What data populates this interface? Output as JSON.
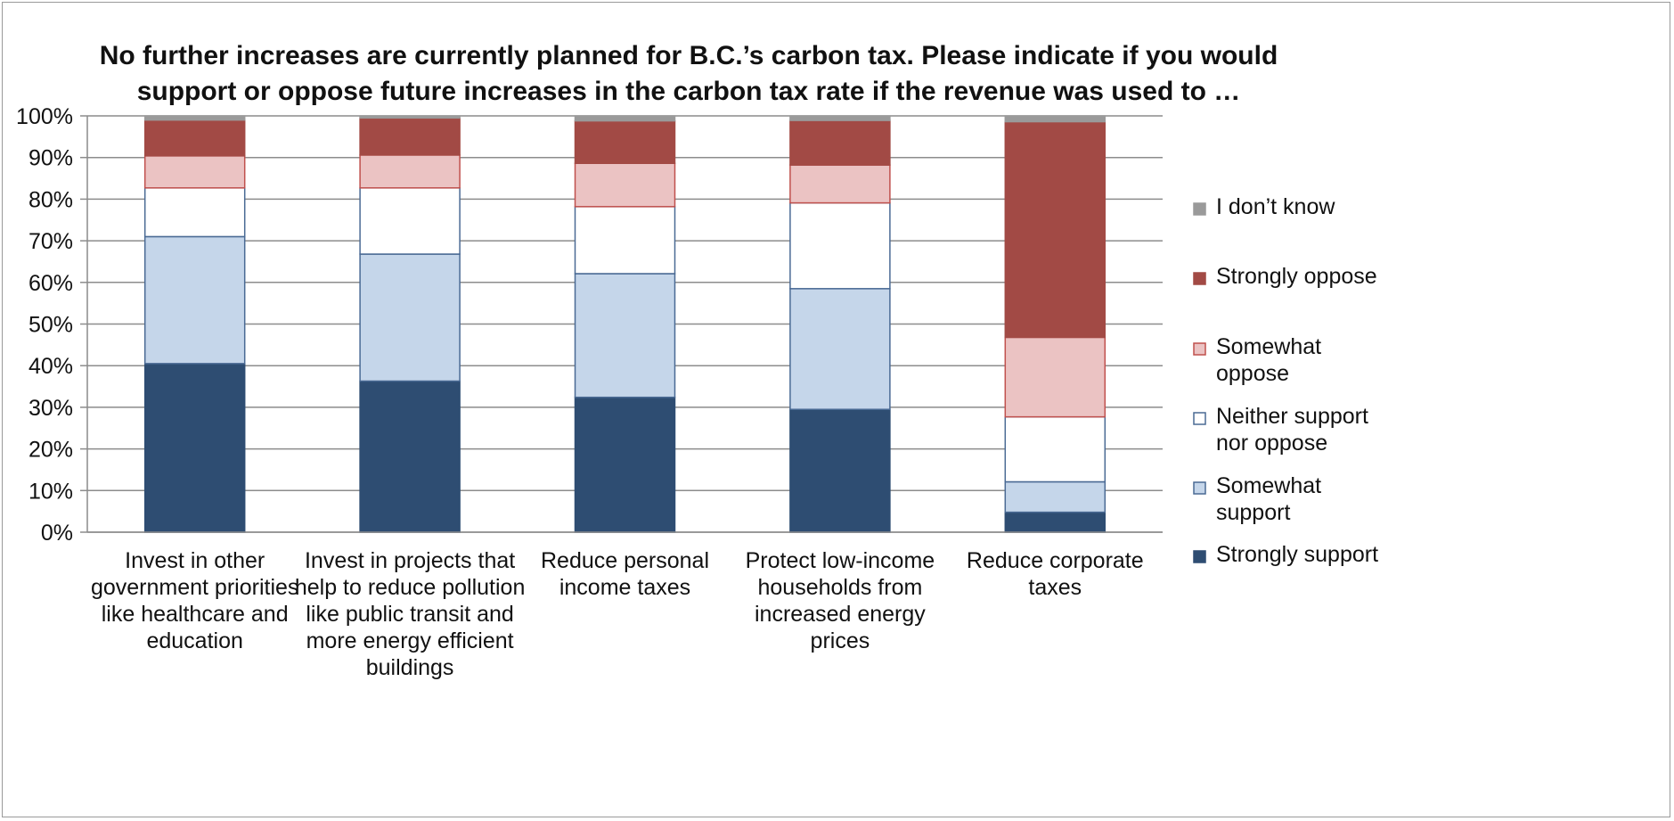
{
  "chart_data": {
    "type": "bar",
    "stacked": true,
    "title": "No further increases are currently planned for B.C.’s carbon tax. Please indicate if you would support or oppose future increases in the carbon tax rate if the revenue was used to …",
    "title_lines": [
      "No further increases are currently planned for B.C.’s carbon tax. Please indicate if you would",
      "support or oppose future increases in the carbon tax rate if the revenue was used to …"
    ],
    "xlabel": "",
    "ylabel": "",
    "ylim": [
      0,
      100
    ],
    "y_ticks": [
      "0%",
      "10%",
      "20%",
      "30%",
      "40%",
      "50%",
      "60%",
      "70%",
      "80%",
      "90%",
      "100%"
    ],
    "grid": true,
    "legend_position": "right",
    "categories": [
      [
        "Invest in other",
        "government priorities",
        "like healthcare and",
        "education"
      ],
      [
        "Invest in projects that",
        "help to reduce pollution",
        "like public transit and",
        "more energy efficient",
        "buildings"
      ],
      [
        "Reduce personal",
        "income taxes"
      ],
      [
        "Protect low-income",
        "households from",
        "increased energy",
        "prices"
      ],
      [
        "Reduce corporate",
        "taxes"
      ]
    ],
    "series": [
      {
        "name": "Strongly support",
        "legend_lines": [
          "Strongly support"
        ],
        "color": "#2e4d72",
        "stroke": "#2e4d72",
        "values": [
          40.5,
          36.3,
          32.4,
          29.5,
          4.8
        ]
      },
      {
        "name": "Somewhat support",
        "legend_lines": [
          "Somewhat",
          "support"
        ],
        "color": "#c5d6ea",
        "stroke": "#4a6a94",
        "values": [
          30.5,
          30.5,
          29.7,
          29.0,
          7.3
        ]
      },
      {
        "name": "Neither support nor oppose",
        "legend_lines": [
          "Neither support",
          "nor oppose"
        ],
        "color": "#ffffff",
        "stroke": "#4a6a94",
        "values": [
          11.7,
          15.9,
          16.1,
          20.6,
          15.6
        ]
      },
      {
        "name": "Somewhat oppose",
        "legend_lines": [
          "Somewhat",
          "oppose"
        ],
        "color": "#ebc3c3",
        "stroke": "#c0504d",
        "values": [
          7.7,
          7.9,
          10.4,
          9.1,
          19.1
        ]
      },
      {
        "name": "Strongly oppose",
        "legend_lines": [
          "Strongly oppose"
        ],
        "color": "#a24a45",
        "stroke": "#a24a45",
        "values": [
          8.6,
          8.9,
          10.2,
          10.7,
          51.8
        ]
      },
      {
        "name": "I don’t know",
        "legend_lines": [
          "I don’t know"
        ],
        "color": "#9a9a9a",
        "stroke": "#9a9a9a",
        "values": [
          1.0,
          0.5,
          1.2,
          1.1,
          1.4
        ]
      }
    ]
  }
}
